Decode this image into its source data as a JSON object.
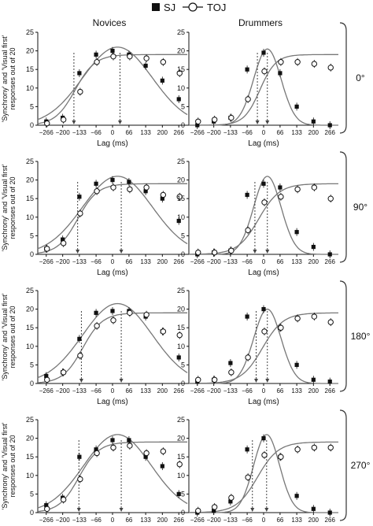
{
  "legend": [
    {
      "label": "SJ",
      "marker": "filled-square"
    },
    {
      "label": "TOJ",
      "marker": "open-circle"
    }
  ],
  "colors": {
    "curve": "#777777",
    "marker": "#111111",
    "axis": "#111111",
    "arrow": "#444444"
  },
  "chart_data": {
    "type": "scatter",
    "columns": [
      "Novices",
      "Drummers"
    ],
    "rows": [
      "0°",
      "90°",
      "180°",
      "270°"
    ],
    "xlabel": "Lag (ms)",
    "ylabel_line1": "'Synchrony' and 'Visual first'",
    "ylabel_line2": "responses out of 20",
    "x_ticks": [
      -266,
      -200,
      -133,
      -66,
      0,
      66,
      133,
      200,
      266
    ],
    "x_tick_labels": [
      "−266",
      "−200",
      "−133",
      "−66",
      "0",
      "66",
      "133",
      "200",
      "266"
    ],
    "y_ticks": [
      0,
      5,
      10,
      15,
      20,
      25
    ],
    "xlim": [
      -300,
      300
    ],
    "ylim": [
      0,
      25
    ],
    "x": [
      -266,
      -200,
      -133,
      -66,
      0,
      66,
      133,
      200,
      266
    ],
    "panels": [
      {
        "column": "Novices",
        "row": "0°",
        "sj": [
          1,
          2,
          14,
          19,
          20,
          19,
          16,
          12,
          7
        ],
        "toj": [
          0.5,
          1.5,
          9,
          17,
          18.5,
          18.5,
          18,
          17,
          14
        ],
        "sj_fit": {
          "peak": 21,
          "center": 20,
          "sd": 140,
          "base": 0
        },
        "toj_fit": {
          "plateau": 19,
          "pss": -150,
          "slope": 40
        },
        "arrows": [
          -155,
          30
        ]
      },
      {
        "column": "Drummers",
        "row": "0°",
        "sj": [
          0,
          1,
          2,
          15,
          19.5,
          14,
          5,
          1,
          0
        ],
        "toj": [
          1,
          1.5,
          2,
          7,
          14.5,
          17,
          17,
          16.5,
          15.5
        ],
        "sj_fit": {
          "peak": 20.5,
          "center": 15,
          "sd": 55,
          "base": 0
        },
        "toj_fit": {
          "plateau": 19,
          "pss": -15,
          "slope": 32
        },
        "arrows": [
          -25,
          15
        ]
      },
      {
        "column": "Novices",
        "row": "90°",
        "sj": [
          1.5,
          4,
          15.5,
          19,
          20,
          19.5,
          17,
          15,
          9
        ],
        "toj": [
          1.5,
          3,
          11,
          17,
          18,
          17.5,
          18,
          16,
          15.5
        ],
        "sj_fit": {
          "peak": 21,
          "center": 20,
          "sd": 140,
          "base": 0
        },
        "toj_fit": {
          "plateau": 19,
          "pss": -140,
          "slope": 40
        },
        "arrows": [
          -140,
          35
        ]
      },
      {
        "column": "Drummers",
        "row": "90°",
        "sj": [
          0,
          0.5,
          1,
          16,
          19,
          18,
          6,
          2,
          0
        ],
        "toj": [
          0.5,
          0.5,
          1,
          6.5,
          14,
          15.5,
          17.5,
          18,
          15
        ],
        "sj_fit": {
          "peak": 21,
          "center": 15,
          "sd": 55,
          "base": 0
        },
        "toj_fit": {
          "plateau": 19,
          "pss": -20,
          "slope": 42
        },
        "arrows": [
          -35,
          15
        ]
      },
      {
        "column": "Novices",
        "row": "180°",
        "sj": [
          2,
          3,
          12,
          19,
          19.5,
          19.5,
          18,
          14,
          7
        ],
        "toj": [
          1,
          3,
          7.5,
          15.5,
          17,
          19,
          18.5,
          14,
          13
        ],
        "sj_fit": {
          "peak": 21.5,
          "center": 20,
          "sd": 140,
          "base": 0
        },
        "toj_fit": {
          "plateau": 19,
          "pss": -120,
          "slope": 40
        },
        "arrows": [
          -125,
          35
        ]
      },
      {
        "column": "Drummers",
        "row": "180°",
        "sj": [
          0.5,
          1,
          5.5,
          18,
          20,
          15,
          5,
          1,
          0.5
        ],
        "toj": [
          1,
          1,
          3,
          7,
          14,
          15,
          17.5,
          18,
          16.5
        ],
        "sj_fit": {
          "peak": 20,
          "center": 15,
          "sd": 55,
          "base": 0
        },
        "toj_fit": {
          "plateau": 19,
          "pss": -5,
          "slope": 42
        },
        "arrows": [
          -30,
          15
        ]
      },
      {
        "column": "Novices",
        "row": "270°",
        "sj": [
          2,
          4,
          15,
          17,
          19.5,
          19.5,
          15,
          12.5,
          5
        ],
        "toj": [
          1,
          3.5,
          9,
          16,
          17.5,
          18,
          16,
          16.5,
          13
        ],
        "sj_fit": {
          "peak": 21,
          "center": 20,
          "sd": 135,
          "base": 0
        },
        "toj_fit": {
          "plateau": 19,
          "pss": -135,
          "slope": 40
        },
        "arrows": [
          -135,
          35
        ]
      },
      {
        "column": "Drummers",
        "row": "270°",
        "sj": [
          0,
          0.5,
          3,
          17,
          20,
          15,
          4.5,
          1,
          0
        ],
        "toj": [
          0.5,
          1.5,
          4,
          9.5,
          15.5,
          15,
          17,
          17.5,
          17.5
        ],
        "sj_fit": {
          "peak": 21,
          "center": 12,
          "sd": 52,
          "base": 0
        },
        "toj_fit": {
          "plateau": 19,
          "pss": -25,
          "slope": 42
        },
        "arrows": [
          -45,
          12
        ]
      }
    ]
  }
}
